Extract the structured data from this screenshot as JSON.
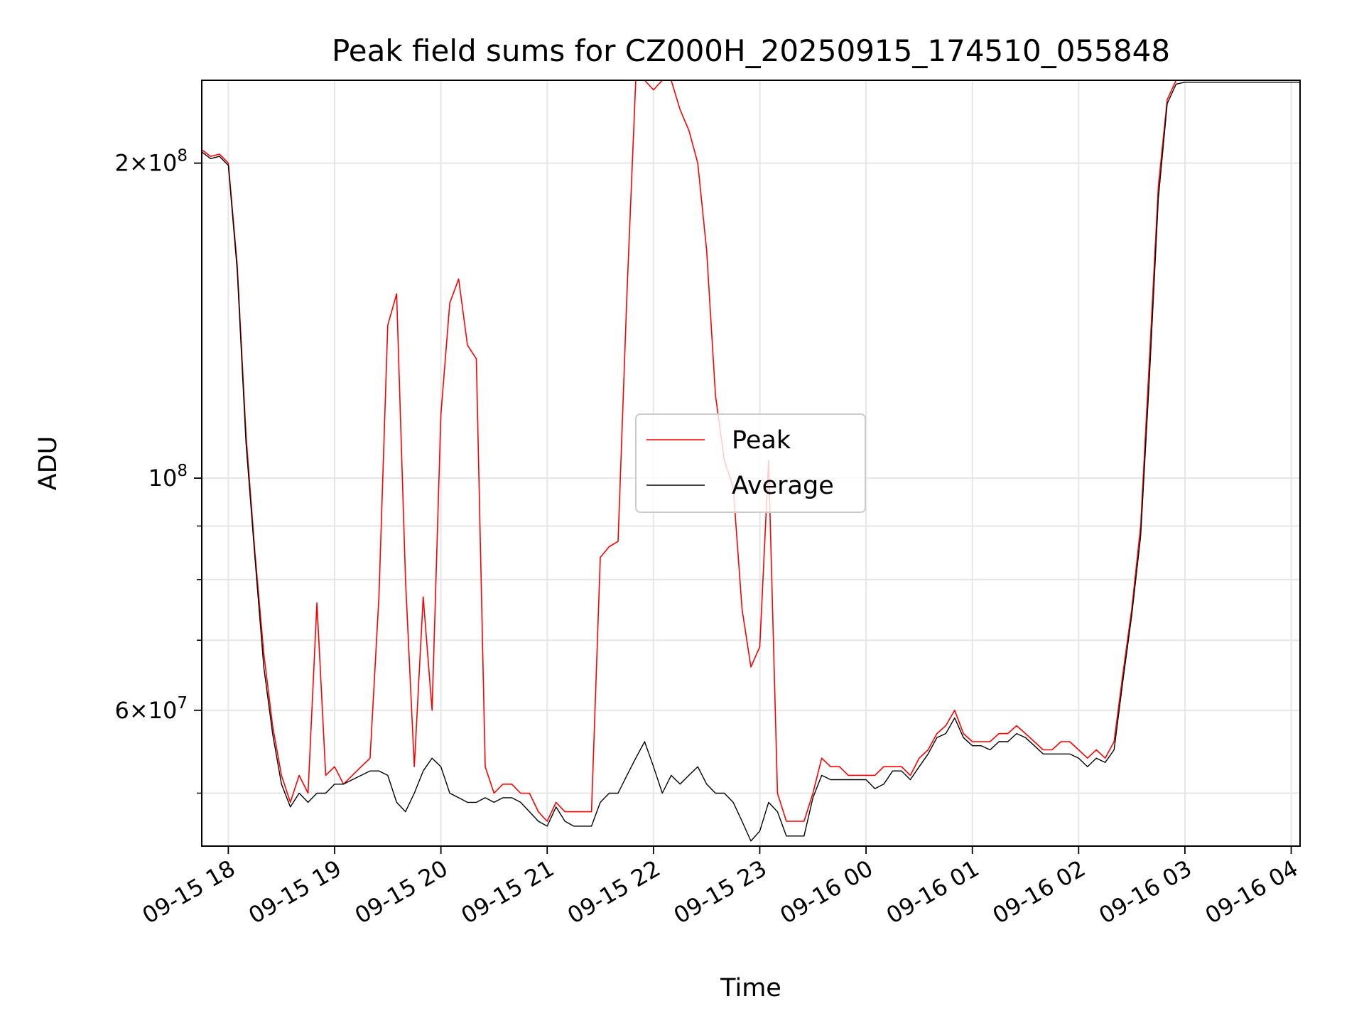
{
  "chart_data": {
    "type": "line",
    "title": "Peak field sums for CZ000H_20250915_174510_055848",
    "xlabel": "Time",
    "ylabel": "ADU",
    "yscale": "log",
    "ylim": [
      44500000,
      240000000
    ],
    "xlim": [
      "09-15 17:45",
      "09-16 04:05"
    ],
    "grid": true,
    "legend_position": "center",
    "x_ticks": [
      "09-15 18",
      "09-15 19",
      "09-15 20",
      "09-15 21",
      "09-15 22",
      "09-15 23",
      "09-16 00",
      "09-16 01",
      "09-16 02",
      "09-16 03",
      "09-16 04"
    ],
    "y_ticks_major": [
      {
        "value": 60000000,
        "mantissa": "6",
        "exp": "7"
      },
      {
        "value": 100000000,
        "mantissa": "",
        "exp": "8"
      },
      {
        "value": 200000000,
        "mantissa": "2",
        "exp": "8"
      }
    ],
    "y_ticks_minor": [
      50000000,
      70000000,
      80000000,
      90000000
    ],
    "series": [
      {
        "name": "Peak",
        "color": "#ff0000",
        "x": [
          "09-15 17:45",
          "09-15 17:50",
          "09-15 17:55",
          "09-15 18:00",
          "09-15 18:05",
          "09-15 18:10",
          "09-15 18:15",
          "09-15 18:20",
          "09-15 18:25",
          "09-15 18:30",
          "09-15 18:35",
          "09-15 18:40",
          "09-15 18:45",
          "09-15 18:50",
          "09-15 18:55",
          "09-15 19:00",
          "09-15 19:05",
          "09-15 19:10",
          "09-15 19:15",
          "09-15 19:20",
          "09-15 19:25",
          "09-15 19:30",
          "09-15 19:35",
          "09-15 19:40",
          "09-15 19:45",
          "09-15 19:50",
          "09-15 19:55",
          "09-15 20:00",
          "09-15 20:05",
          "09-15 20:10",
          "09-15 20:15",
          "09-15 20:20",
          "09-15 20:25",
          "09-15 20:30",
          "09-15 20:35",
          "09-15 20:40",
          "09-15 20:45",
          "09-15 20:50",
          "09-15 20:55",
          "09-15 21:00",
          "09-15 21:05",
          "09-15 21:10",
          "09-15 21:15",
          "09-15 21:20",
          "09-15 21:25",
          "09-15 21:30",
          "09-15 21:35",
          "09-15 21:40",
          "09-15 21:45",
          "09-15 21:50",
          "09-15 21:55",
          "09-15 22:00",
          "09-15 22:05",
          "09-15 22:10",
          "09-15 22:15",
          "09-15 22:20",
          "09-15 22:25",
          "09-15 22:30",
          "09-15 22:35",
          "09-15 22:40",
          "09-15 22:45",
          "09-15 22:50",
          "09-15 22:55",
          "09-15 23:00",
          "09-15 23:05",
          "09-15 23:10",
          "09-15 23:15",
          "09-15 23:20",
          "09-15 23:25",
          "09-15 23:30",
          "09-15 23:35",
          "09-15 23:40",
          "09-15 23:45",
          "09-15 23:50",
          "09-15 23:55",
          "09-16 00:00",
          "09-16 00:05",
          "09-16 00:10",
          "09-16 00:15",
          "09-16 00:20",
          "09-16 00:25",
          "09-16 00:30",
          "09-16 00:35",
          "09-16 00:40",
          "09-16 00:45",
          "09-16 00:50",
          "09-16 00:55",
          "09-16 01:00",
          "09-16 01:05",
          "09-16 01:10",
          "09-16 01:15",
          "09-16 01:20",
          "09-16 01:25",
          "09-16 01:30",
          "09-16 01:35",
          "09-16 01:40",
          "09-16 01:45",
          "09-16 01:50",
          "09-16 01:55",
          "09-16 02:00",
          "09-16 02:05",
          "09-16 02:10",
          "09-16 02:15",
          "09-16 02:20",
          "09-16 02:25",
          "09-16 02:30",
          "09-16 02:35",
          "09-16 02:40",
          "09-16 02:45",
          "09-16 02:50",
          "09-16 02:55",
          "09-16 03:00",
          "09-16 03:05",
          "09-16 03:10",
          "09-16 03:15",
          "09-16 03:20",
          "09-16 03:25",
          "09-16 03:30",
          "09-16 03:35",
          "09-16 03:40",
          "09-16 03:45",
          "09-16 03:50",
          "09-16 03:55",
          "09-16 04:00",
          "09-16 04:05"
        ],
        "y": [
          206000000,
          203000000,
          204000000,
          200000000,
          160000000,
          110000000,
          85000000,
          68000000,
          58000000,
          52000000,
          49000000,
          52000000,
          50000000,
          76000000,
          52000000,
          53000000,
          51000000,
          52000000,
          53000000,
          54000000,
          77000000,
          140000000,
          150000000,
          80000000,
          53000000,
          77000000,
          60000000,
          115000000,
          147000000,
          155000000,
          134000000,
          130000000,
          53000000,
          50000000,
          51000000,
          51000000,
          50000000,
          50000000,
          48000000,
          47000000,
          49000000,
          48000000,
          48000000,
          48000000,
          48000000,
          84000000,
          86000000,
          87000000,
          150000000,
          240000000,
          240000000,
          235000000,
          240000000,
          240000000,
          225000000,
          215000000,
          200000000,
          165000000,
          120000000,
          104000000,
          98000000,
          75000000,
          66000000,
          69000000,
          104000000,
          50000000,
          47000000,
          47000000,
          47000000,
          50000000,
          54000000,
          53000000,
          53000000,
          52000000,
          52000000,
          52000000,
          52000000,
          53000000,
          53000000,
          53000000,
          52000000,
          54000000,
          55000000,
          57000000,
          58000000,
          60000000,
          57000000,
          56000000,
          56000000,
          56000000,
          57000000,
          57000000,
          58000000,
          57000000,
          56000000,
          55000000,
          55000000,
          56000000,
          56000000,
          55000000,
          54000000,
          55000000,
          54000000,
          56000000,
          65000000,
          75000000,
          90000000,
          130000000,
          190000000,
          230000000,
          240000000,
          240000000,
          240000000,
          240000000,
          240000000,
          240000000,
          240000000,
          240000000,
          240000000,
          240000000,
          240000000,
          240000000,
          240000000,
          240000000,
          240000000
        ]
      },
      {
        "name": "Average",
        "color": "#000000",
        "x": [
          "09-15 17:45",
          "09-15 17:50",
          "09-15 17:55",
          "09-15 18:00",
          "09-15 18:05",
          "09-15 18:10",
          "09-15 18:15",
          "09-15 18:20",
          "09-15 18:25",
          "09-15 18:30",
          "09-15 18:35",
          "09-15 18:40",
          "09-15 18:45",
          "09-15 18:50",
          "09-15 18:55",
          "09-15 19:00",
          "09-15 19:05",
          "09-15 19:10",
          "09-15 19:15",
          "09-15 19:20",
          "09-15 19:25",
          "09-15 19:30",
          "09-15 19:35",
          "09-15 19:40",
          "09-15 19:45",
          "09-15 19:50",
          "09-15 19:55",
          "09-15 20:00",
          "09-15 20:05",
          "09-15 20:10",
          "09-15 20:15",
          "09-15 20:20",
          "09-15 20:25",
          "09-15 20:30",
          "09-15 20:35",
          "09-15 20:40",
          "09-15 20:45",
          "09-15 20:50",
          "09-15 20:55",
          "09-15 21:00",
          "09-15 21:05",
          "09-15 21:10",
          "09-15 21:15",
          "09-15 21:20",
          "09-15 21:25",
          "09-15 21:30",
          "09-15 21:35",
          "09-15 21:40",
          "09-15 21:45",
          "09-15 21:50",
          "09-15 21:55",
          "09-15 22:00",
          "09-15 22:05",
          "09-15 22:10",
          "09-15 22:15",
          "09-15 22:20",
          "09-15 22:25",
          "09-15 22:30",
          "09-15 22:35",
          "09-15 22:40",
          "09-15 22:45",
          "09-15 22:50",
          "09-15 22:55",
          "09-15 23:00",
          "09-15 23:05",
          "09-15 23:10",
          "09-15 23:15",
          "09-15 23:20",
          "09-15 23:25",
          "09-15 23:30",
          "09-15 23:35",
          "09-15 23:40",
          "09-15 23:45",
          "09-15 23:50",
          "09-15 23:55",
          "09-16 00:00",
          "09-16 00:05",
          "09-16 00:10",
          "09-16 00:15",
          "09-16 00:20",
          "09-16 00:25",
          "09-16 00:30",
          "09-16 00:35",
          "09-16 00:40",
          "09-16 00:45",
          "09-16 00:50",
          "09-16 00:55",
          "09-16 01:00",
          "09-16 01:05",
          "09-16 01:10",
          "09-16 01:15",
          "09-16 01:20",
          "09-16 01:25",
          "09-16 01:30",
          "09-16 01:35",
          "09-16 01:40",
          "09-16 01:45",
          "09-16 01:50",
          "09-16 01:55",
          "09-16 02:00",
          "09-16 02:05",
          "09-16 02:10",
          "09-16 02:15",
          "09-16 02:20",
          "09-16 02:25",
          "09-16 02:30",
          "09-16 02:35",
          "09-16 02:40",
          "09-16 02:45",
          "09-16 02:50",
          "09-16 02:55",
          "09-16 03:00",
          "09-16 03:05",
          "09-16 03:10",
          "09-16 03:15",
          "09-16 03:20",
          "09-16 03:25",
          "09-16 03:30",
          "09-16 03:35",
          "09-16 03:40",
          "09-16 03:45",
          "09-16 03:50",
          "09-16 03:55",
          "09-16 04:00",
          "09-16 04:05"
        ],
        "y": [
          205000000,
          202000000,
          203000000,
          199000000,
          158000000,
          108000000,
          84000000,
          66000000,
          57000000,
          51000000,
          48500000,
          50000000,
          49000000,
          50000000,
          50000000,
          51000000,
          51000000,
          51500000,
          52000000,
          52500000,
          52500000,
          52000000,
          49000000,
          48000000,
          50000000,
          52500000,
          54000000,
          53000000,
          50000000,
          49500000,
          49000000,
          49000000,
          49500000,
          49000000,
          49500000,
          49500000,
          49000000,
          48000000,
          47000000,
          46500000,
          48500000,
          47000000,
          46500000,
          46500000,
          46500000,
          49000000,
          50000000,
          50000000,
          52000000,
          54000000,
          56000000,
          53000000,
          50000000,
          52000000,
          51000000,
          52000000,
          53000000,
          51000000,
          50000000,
          50000000,
          49000000,
          47000000,
          45000000,
          46000000,
          49000000,
          48000000,
          45500000,
          45500000,
          45500000,
          49500000,
          52000000,
          51500000,
          51500000,
          51500000,
          51500000,
          51500000,
          50500000,
          51000000,
          52500000,
          52500000,
          51500000,
          53000000,
          54500000,
          56500000,
          57000000,
          59000000,
          56500000,
          55500000,
          55500000,
          55000000,
          56000000,
          56000000,
          57000000,
          56500000,
          55500000,
          54500000,
          54500000,
          54500000,
          54500000,
          54000000,
          53000000,
          54000000,
          53500000,
          55000000,
          64000000,
          74000000,
          88000000,
          125000000,
          185000000,
          228000000,
          238000000,
          239000000,
          239000000,
          239000000,
          239000000,
          239000000,
          239000000,
          239000000,
          239000000,
          239000000,
          239000000,
          239000000,
          239000000,
          239000000,
          239000000
        ]
      }
    ]
  }
}
